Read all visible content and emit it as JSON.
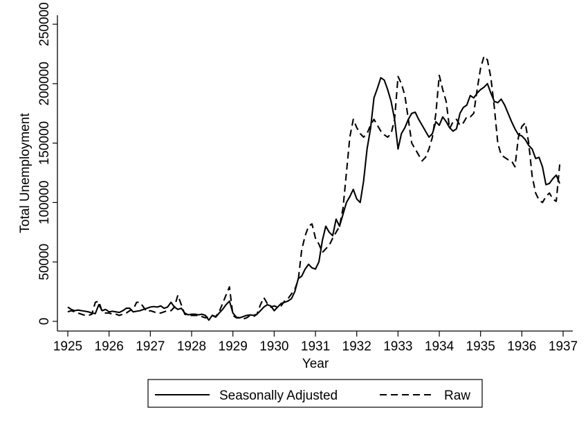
{
  "chart_data": {
    "type": "line",
    "title": "",
    "xlabel": "Year",
    "ylabel": "Total Unemployment",
    "xlim": [
      1925,
      1937
    ],
    "ylim": [
      0,
      250000
    ],
    "grid": false,
    "legend_position": "bottom",
    "x_ticks": [
      "1925",
      "1926",
      "1927",
      "1928",
      "1929",
      "1930",
      "1931",
      "1932",
      "1933",
      "1934",
      "1935",
      "1936",
      "1937"
    ],
    "y_ticks": [
      "0",
      "50000",
      "100000",
      "150000",
      "200000",
      "250000"
    ],
    "x_frequency": "monthly",
    "x_start": "1925-01",
    "series": [
      {
        "name": "Seasonally Adjusted",
        "style": "solid",
        "values": [
          12000,
          10000,
          9000,
          9500,
          9000,
          8500,
          8000,
          7000,
          6500,
          14000,
          9000,
          10000,
          8000,
          8500,
          8000,
          7500,
          9000,
          11000,
          11000,
          8000,
          8500,
          9000,
          10000,
          11000,
          12000,
          12500,
          12000,
          13000,
          11000,
          12000,
          16000,
          12000,
          10000,
          11000,
          7000,
          5500,
          6000,
          6000,
          5500,
          6000,
          5000,
          1000,
          5000,
          3500,
          7000,
          10000,
          14000,
          17000,
          7000,
          3500,
          3000,
          4000,
          5000,
          5500,
          5000,
          6000,
          9000,
          12000,
          14000,
          13000,
          9000,
          12000,
          15000,
          16000,
          17000,
          19000,
          25000,
          36000,
          38000,
          44000,
          48000,
          45000,
          44000,
          50000,
          68000,
          80000,
          75000,
          72000,
          86000,
          80000,
          90000,
          100000,
          105000,
          111000,
          103000,
          100000,
          118000,
          145000,
          162000,
          188000,
          196000,
          205000,
          203000,
          195000,
          185000,
          170000,
          145000,
          158000,
          163000,
          170000,
          175000,
          176000,
          170000,
          165000,
          160000,
          155000,
          158000,
          168000,
          165000,
          172000,
          168000,
          163000,
          160000,
          162000,
          175000,
          180000,
          182000,
          190000,
          188000,
          192000,
          195000,
          197000,
          200000,
          192000,
          185000,
          184000,
          187000,
          182000,
          175000,
          168000,
          162000,
          157000,
          156000,
          153000,
          148000,
          145000,
          137000,
          138000,
          130000,
          115000,
          116000,
          120000,
          123000,
          116000
        ]
      },
      {
        "name": "Raw",
        "style": "dashed",
        "values": [
          8000,
          9000,
          8000,
          7000,
          6000,
          5000,
          5000,
          6000,
          16000,
          17000,
          8000,
          7000,
          7000,
          6000,
          6000,
          5000,
          6000,
          7000,
          9000,
          10000,
          16000,
          16000,
          12000,
          8000,
          9000,
          8000,
          7000,
          7000,
          8000,
          9000,
          9000,
          12000,
          22000,
          14000,
          6000,
          5000,
          5000,
          5000,
          5000,
          4000,
          3000,
          4000,
          5000,
          4000,
          8000,
          15000,
          22000,
          29000,
          5000,
          3000,
          3000,
          2000,
          3000,
          5000,
          4000,
          6000,
          14000,
          20000,
          15000,
          12000,
          13000,
          12000,
          13000,
          17000,
          19000,
          23000,
          27000,
          35000,
          60000,
          72000,
          80000,
          82000,
          70000,
          65000,
          58000,
          61000,
          64000,
          70000,
          75000,
          80000,
          95000,
          125000,
          155000,
          170000,
          163000,
          158000,
          155000,
          158000,
          165000,
          170000,
          165000,
          160000,
          157000,
          155000,
          158000,
          170000,
          206000,
          200000,
          190000,
          170000,
          150000,
          145000,
          140000,
          135000,
          138000,
          145000,
          155000,
          175000,
          207000,
          195000,
          185000,
          162000,
          168000,
          170000,
          165000,
          167000,
          172000,
          172000,
          175000,
          195000,
          213000,
          223000,
          220000,
          205000,
          180000,
          150000,
          140000,
          138000,
          136000,
          135000,
          130000,
          155000,
          164000,
          167000,
          150000,
          122000,
          108000,
          102000,
          100000,
          105000,
          108000,
          103000,
          101000,
          132000
        ]
      }
    ]
  },
  "legend": {
    "items": [
      {
        "label": "Seasonally Adjusted",
        "style": "solid"
      },
      {
        "label": "Raw",
        "style": "dashed"
      }
    ]
  },
  "axes": {
    "xlabel": "Year",
    "ylabel": "Total Unemployment"
  },
  "colors": {
    "line": "#000000",
    "background": "#ffffff"
  }
}
